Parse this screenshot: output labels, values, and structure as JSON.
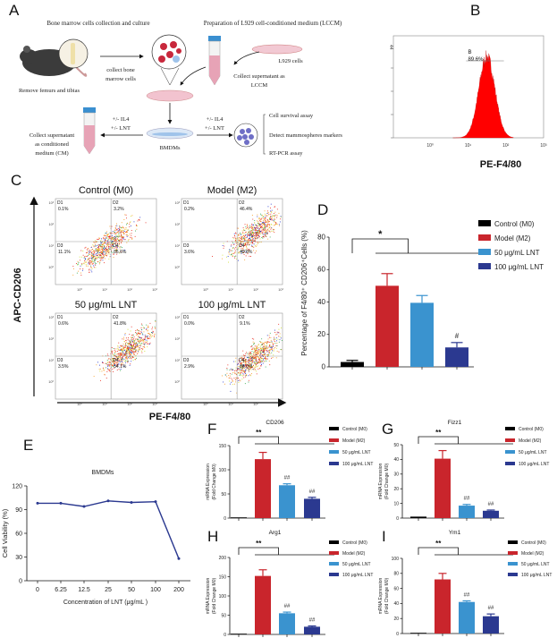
{
  "panel_labels": {
    "A": "A",
    "B": "B",
    "C": "C",
    "D": "D",
    "E": "E",
    "F": "F",
    "G": "G",
    "H": "H",
    "I": "I"
  },
  "schematic": {
    "heading_left": "Bone marrow cells collection and culture",
    "heading_right": "Preparation of L929 cell-conditioned medium (LCCM)",
    "remove_bones": "Remove femurs and tibias",
    "collect_bone_1": "collect bone",
    "collect_bone_2": "marrow cells",
    "l929_cells": "L929 cells",
    "collect_lccm_1": "Collect supernatant as",
    "collect_lccm_2": "LCCM",
    "treat_left_1": "+/- IL4",
    "treat_left_2": "+/-  LNT",
    "treat_right_1": "+/- IL4",
    "treat_right_2": "+/-  LNT",
    "collect_cm_1": "Collect supernatant",
    "collect_cm_2": "as conditioned",
    "collect_cm_3": "medium (CM)",
    "bmdms": "BMDMs",
    "assay_1": "Cell survival assay",
    "assay_2": "Detect mammospheres markers",
    "assay_3": "RT-PCR assay",
    "colors": {
      "tube_cap": "#3a8fd0",
      "medium": "#e7a3b6",
      "cell": "#c8283c"
    }
  },
  "chart_data": [
    {
      "id": "B",
      "type": "area",
      "description_kind": "histogram",
      "xlabel": "PE-F4/80",
      "x_scale": "log",
      "xticks": [
        "10⁰",
        "10¹",
        "10²",
        "10³"
      ],
      "yticks": [
        "44"
      ],
      "gate": {
        "name": "B",
        "value": "89.6%"
      },
      "color": "#ff0000"
    },
    {
      "id": "C",
      "type": "scatter",
      "xlabel": "PE-F4/80",
      "ylabel": "APC-CD206",
      "x_scale": "log",
      "y_scale": "log",
      "xticks": [
        "10⁰",
        "10¹",
        "10²",
        "10³"
      ],
      "yticks": [
        "10⁰",
        "10¹",
        "10²",
        "10³"
      ],
      "plots": [
        {
          "title": "Control (M0)",
          "quadrants": {
            "D1": "0.1%",
            "D2": "3.2%",
            "D3": "11.1%",
            "D4": "85.6%"
          }
        },
        {
          "title": "Model (M2)",
          "quadrants": {
            "D1": "0.2%",
            "D2": "46.4%",
            "D3": "3.6%",
            "D4": "49.8%"
          }
        },
        {
          "title": "50 μg/mL LNT",
          "quadrants": {
            "D1": "0.6%",
            "D2": "41.8%",
            "D3": "3.5%",
            "D4": "54.1%"
          }
        },
        {
          "title": "100 μg/mL LNT",
          "quadrants": {
            "D1": "0.0%",
            "D2": "9.1%",
            "D3": "2.9%",
            "D4": "88.0%"
          }
        }
      ]
    },
    {
      "id": "D",
      "type": "bar",
      "title": "",
      "categories": [
        "Control (M0)",
        "Model (M2)",
        "50 μg/mL LNT",
        "100 μg/mL LNT"
      ],
      "values": [
        3,
        50,
        39.5,
        12
      ],
      "errors": [
        1,
        7.5,
        4.5,
        3
      ],
      "marks": [
        "",
        "",
        "",
        "#"
      ],
      "significance": "*",
      "ylabel": "Percentage of F4/80⁺ CD206⁺Cells (%)",
      "ylim": [
        0,
        80
      ],
      "yticks": [
        0,
        20,
        40,
        60,
        80
      ],
      "legend": "right",
      "colors": [
        "#000000",
        "#c9252c",
        "#3a93cf",
        "#2b3990"
      ]
    },
    {
      "id": "E",
      "type": "line",
      "title": "BMDMs",
      "categories": [
        "0",
        "6.25",
        "12.5",
        "25",
        "50",
        "100",
        "200"
      ],
      "values": [
        98,
        98,
        94,
        101,
        99,
        100,
        28
      ],
      "xlabel": "Concentration of  LNT (μg/mL )",
      "ylabel": "Cell Viability (%)",
      "ylim": [
        0,
        120
      ],
      "yticks": [
        0,
        30,
        60,
        90,
        120
      ],
      "color": "#2b3990"
    },
    {
      "id": "F",
      "type": "bar",
      "title": "CD206",
      "categories": [
        "Control (M0)",
        "Model (M2)",
        "50 μg/mL LNT",
        "100 μg/mL LNT"
      ],
      "values": [
        0.5,
        122,
        68,
        40
      ],
      "errors": [
        0,
        14,
        3,
        3
      ],
      "marks": [
        "",
        "",
        "##",
        "##"
      ],
      "significance": "**",
      "ylabel": [
        "mRNA Expression",
        "(Fold Change M0)"
      ],
      "ylim": [
        0,
        150
      ],
      "yticks": [
        0,
        50,
        100,
        150
      ],
      "legend": "right",
      "colors": [
        "#000000",
        "#c9252c",
        "#3a93cf",
        "#2b3990"
      ]
    },
    {
      "id": "G",
      "type": "bar",
      "title": "Fizz1",
      "categories": [
        "Control (M0)",
        "Model (M2)",
        "50 μg/mL LNT",
        "100 μg/mL LNT"
      ],
      "values": [
        1,
        40.5,
        8.5,
        5
      ],
      "errors": [
        0,
        5.5,
        0.8,
        0.5
      ],
      "marks": [
        "",
        "",
        "##",
        "##"
      ],
      "significance": "**",
      "ylabel": [
        "mRNA Expression",
        "(Fold Change M0)"
      ],
      "ylim": [
        0,
        50
      ],
      "yticks": [
        0,
        10,
        20,
        30,
        40,
        50
      ],
      "legend": "right",
      "colors": [
        "#000000",
        "#c9252c",
        "#3a93cf",
        "#2b3990"
      ]
    },
    {
      "id": "H",
      "type": "bar",
      "title": "Arg1",
      "categories": [
        "Control (M0)",
        "Model (M2)",
        "50 μg/mL LNT",
        "100 μg/mL LNT"
      ],
      "values": [
        0.5,
        152,
        55,
        20
      ],
      "errors": [
        0,
        16,
        3,
        2
      ],
      "marks": [
        "",
        "",
        "##",
        "##"
      ],
      "significance": "**",
      "ylabel": [
        "mRNA Expression",
        "(Fold Change M0)"
      ],
      "ylim": [
        0,
        200
      ],
      "yticks": [
        0,
        50,
        100,
        150,
        200
      ],
      "legend": "right",
      "colors": [
        "#000000",
        "#c9252c",
        "#3a93cf",
        "#2b3990"
      ]
    },
    {
      "id": "I",
      "type": "bar",
      "title": "Ym1",
      "categories": [
        "Control (M0)",
        "Model (M2)",
        "50 μg/mL LNT",
        "100 μg/mL LNT"
      ],
      "values": [
        0.5,
        72,
        42,
        23
      ],
      "errors": [
        0,
        8,
        1.5,
        3
      ],
      "marks": [
        "",
        "",
        "##",
        "##"
      ],
      "significance": "**",
      "ylabel": [
        "mRNA Expression",
        "(Fold Change M0)"
      ],
      "ylim": [
        0,
        100
      ],
      "yticks": [
        0,
        20,
        40,
        60,
        80,
        100
      ],
      "legend": "right",
      "colors": [
        "#000000",
        "#c9252c",
        "#3a93cf",
        "#2b3990"
      ]
    }
  ]
}
